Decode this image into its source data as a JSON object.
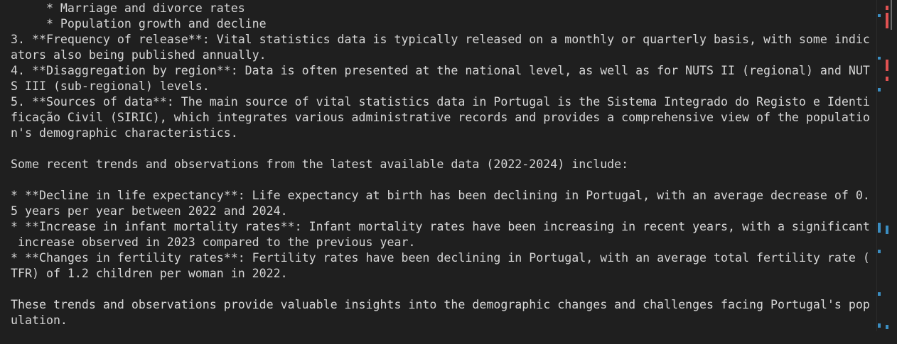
{
  "terminal": {
    "blocks": [
      {
        "lines": [
          "     * Marriage and divorce rates",
          "     * Population growth and decline",
          "3. **Frequency of release**: Vital statistics data is typically released on a monthly or quarterly basis, with some indic",
          "ators also being published annually.",
          "4. **Disaggregation by region**: Data is often presented at the national level, as well as for NUTS II (regional) and NUT",
          "S III (sub-regional) levels.",
          "5. **Sources of data**: The main source of vital statistics data in Portugal is the Sistema Integrado do Registo e Identi",
          "ficação Civil (SIRIC), which integrates various administrative records and provides a comprehensive view of the populatio",
          "n's demographic characteristics."
        ]
      },
      {
        "lines": [
          "Some recent trends and observations from the latest available data (2022-2024) include:"
        ]
      },
      {
        "lines": [
          "* **Decline in life expectancy**: Life expectancy at birth has been declining in Portugal, with an average decrease of 0.",
          "5 years per year between 2022 and 2024.",
          "* **Increase in infant mortality rates**: Infant mortality rates have been increasing in recent years, with a significant",
          " increase observed in 2023 compared to the previous year.",
          "* **Changes in fertility rates**: Fertility rates have been declining in Portugal, with an average total fertility rate (",
          "TFR) of 1.2 children per woman in 2022."
        ]
      },
      {
        "lines": [
          "These trends and observations provide valuable insights into the demographic changes and challenges facing Portugal's pop",
          "ulation."
        ]
      }
    ]
  }
}
